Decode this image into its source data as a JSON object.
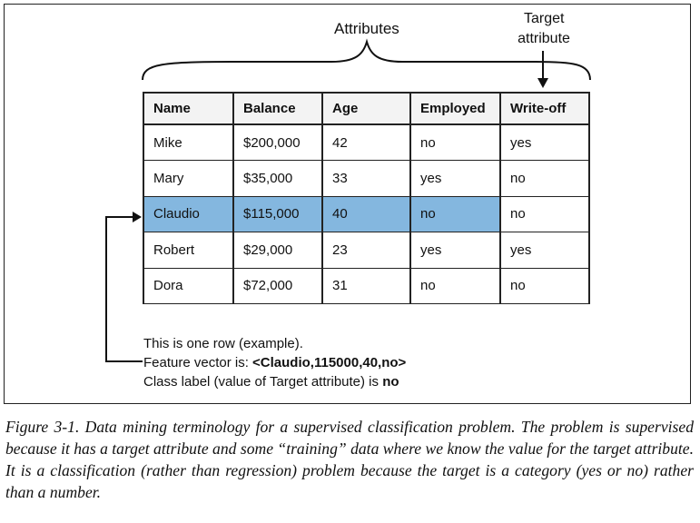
{
  "figure": {
    "attributes_label": "Attributes",
    "target_label_line1": "Target",
    "target_label_line2": "attribute",
    "table": {
      "headers": [
        "Name",
        "Balance",
        "Age",
        "Employed",
        "Write-off"
      ],
      "rows": [
        [
          "Mike",
          "$200,000",
          "42",
          "no",
          "yes"
        ],
        [
          "Mary",
          "$35,000",
          "33",
          "yes",
          "no"
        ],
        [
          "Claudio",
          "$115,000",
          "40",
          "no",
          "no"
        ],
        [
          "Robert",
          "$29,000",
          "23",
          "yes",
          "yes"
        ],
        [
          "Dora",
          "$72,000",
          "31",
          "no",
          "no"
        ]
      ],
      "highlighted_row": 2,
      "highlight_color": "#84b7df"
    },
    "notes": {
      "line1": "This is one row (example).",
      "line2_prefix": "Feature vector is: ",
      "line2_value": "<Claudio,115000,40,no>",
      "line3_prefix": "Class label (value of Target attribute) is ",
      "line3_value": "no"
    }
  },
  "caption": "Figure 3-1. Data mining terminology for a supervised classification problem. The problem is supervised because it has a target attribute and some “training” data where we know the value for the target attribute. It is a classification (rather than regression) problem because the target is a category (yes or no) rather than a number."
}
